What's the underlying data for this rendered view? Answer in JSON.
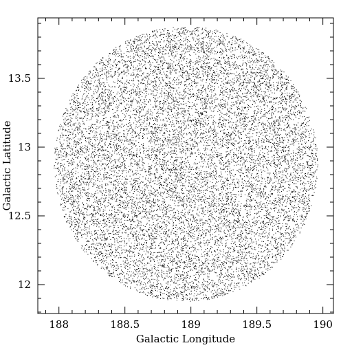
{
  "chart_data": {
    "type": "scatter",
    "title": "",
    "xlabel": "Galactic Longitude",
    "ylabel": "Galactic Latitude",
    "xlim": [
      187.84,
      190.08
    ],
    "ylim": [
      11.79,
      13.94
    ],
    "xticks": [
      188,
      188.5,
      189,
      189.5,
      190
    ],
    "xtick_labels": [
      "188",
      "188.5",
      "189",
      "189.5",
      "190"
    ],
    "yticks": [
      12,
      12.5,
      13,
      13.5
    ],
    "ytick_labels": [
      "12",
      "12.5",
      "13",
      "13.5"
    ],
    "x_minor_step": 0.1,
    "y_minor_step": 0.1,
    "grid": false,
    "marker_color": "#000000",
    "series": [
      {
        "region": "circle",
        "center": [
          188.96,
          12.88
        ],
        "radius_deg": 1.0,
        "approx_point_count": 14000
      }
    ]
  }
}
